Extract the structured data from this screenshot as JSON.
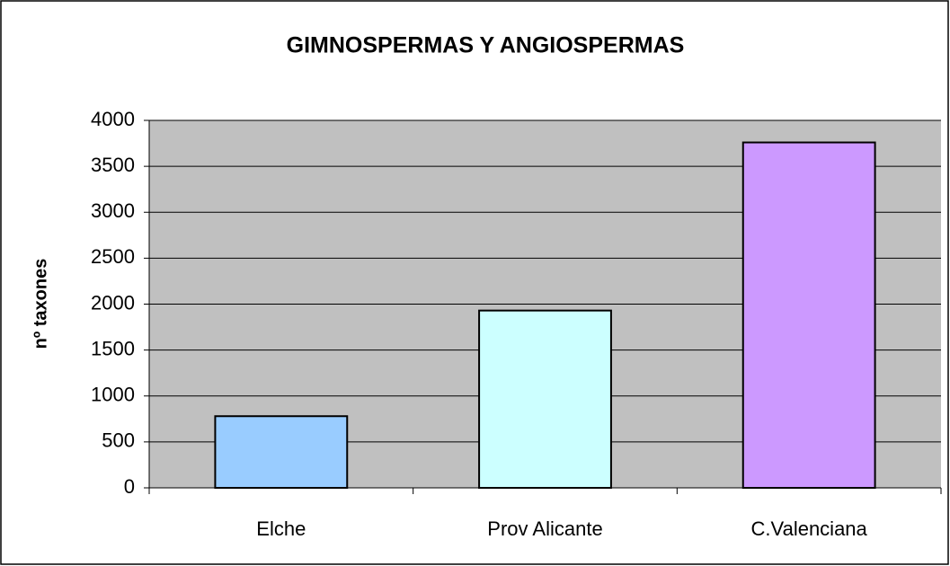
{
  "chart_data": {
    "type": "bar",
    "title": "GIMNOSPERMAS Y ANGIOSPERMAS",
    "ylabel": "nº taxones",
    "categories": [
      "Elche",
      "Prov Alicante",
      "C.Valenciana"
    ],
    "values": [
      780,
      1930,
      3760
    ],
    "colors": [
      "#99ccff",
      "#ccffff",
      "#cc99ff"
    ],
    "ylim": [
      0,
      4000
    ],
    "yticks": [
      0,
      500,
      1000,
      1500,
      2000,
      2500,
      3000,
      3500,
      4000
    ],
    "grid": true
  }
}
